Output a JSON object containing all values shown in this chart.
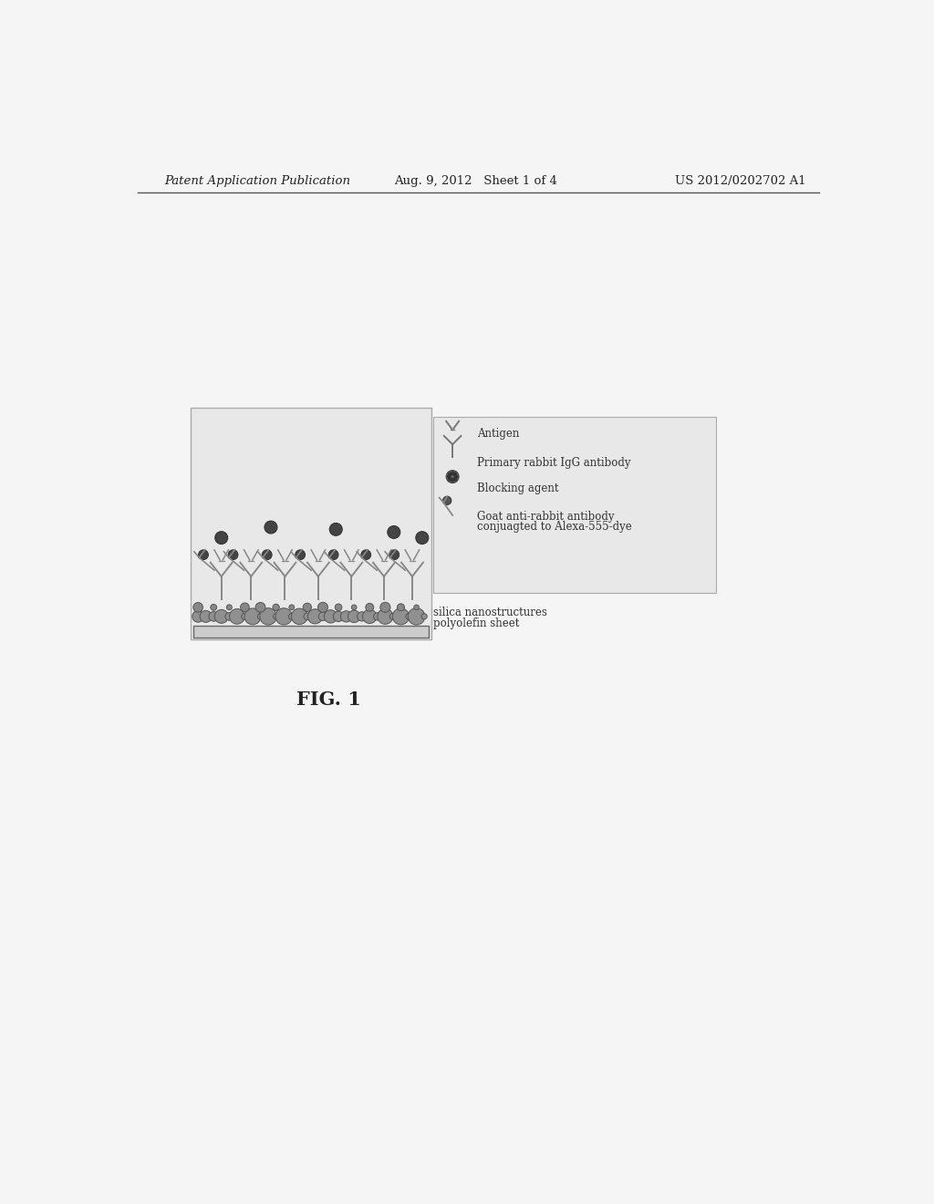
{
  "bg_color": "#f5f5f5",
  "header_left": "Patent Application Publication",
  "header_mid": "Aug. 9, 2012   Sheet 1 of 4",
  "header_right": "US 2012/0202702 A1",
  "figure_label": "FIG. 1",
  "legend_label_antigen": "Antigen",
  "legend_label_primary": "Primary rabbit IgG antibody",
  "legend_label_blocking": "Blocking agent",
  "legend_label_secondary_1": "Goat anti-rabbit antibody",
  "legend_label_secondary_2": "conjuagted to Alexa-555-dye",
  "bottom_label1": "silica nanostructures",
  "bottom_label2": "polyolefin sheet",
  "diagram_bg": "#e8e8e8",
  "line_color": "#555555",
  "dark_dot_color": "#444444",
  "nano_color": "#888888",
  "sheet_color": "#bbbbbb",
  "ab_color": "#888888",
  "header_text_color": "#222222"
}
